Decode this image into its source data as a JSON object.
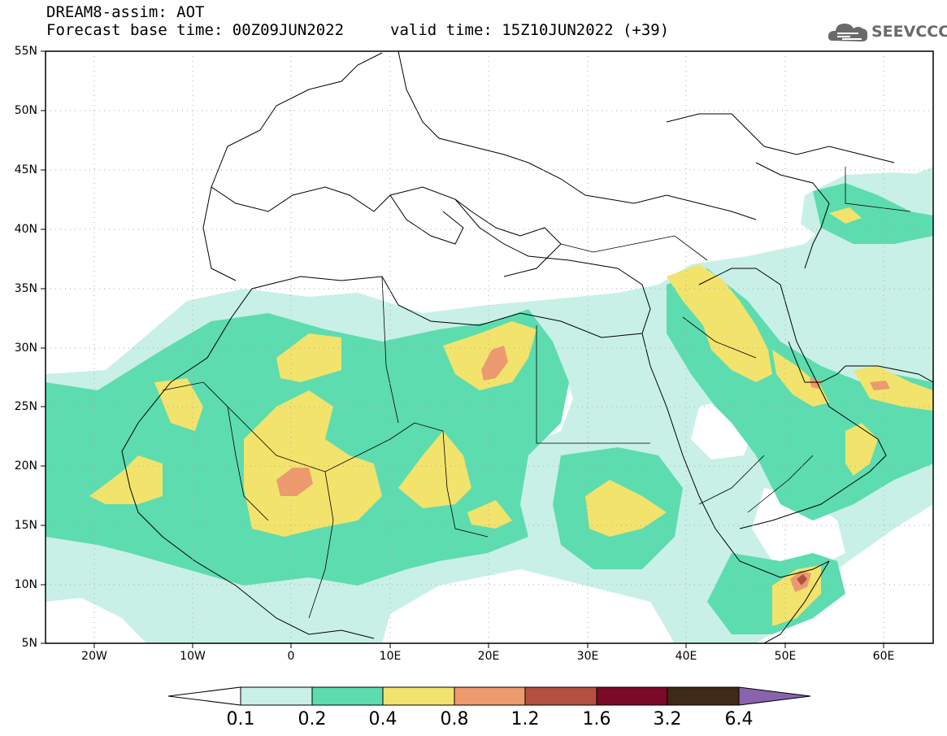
{
  "header": {
    "title": "DREAM8-assim: AOT",
    "base_time": "Forecast base time: 00Z09JUN2022",
    "valid_time": "valid time: 15Z10JUN2022 (+39)"
  },
  "logo": {
    "text": "SEEVCCC",
    "icon": "cloud-icon"
  },
  "map": {
    "lat_range": [
      5,
      55
    ],
    "lon_range": [
      -25,
      65
    ],
    "lat_labels": [
      "55N",
      "50N",
      "45N",
      "40N",
      "35N",
      "30N",
      "25N",
      "20N",
      "15N",
      "10N",
      "5N"
    ],
    "lon_labels": [
      "20W",
      "10W",
      "0",
      "10E",
      "20E",
      "30E",
      "40E",
      "50E",
      "60E"
    ],
    "grid": "dotted"
  },
  "legend": {
    "labels": [
      "0.1",
      "0.2",
      "0.4",
      "0.8",
      "1.2",
      "1.6",
      "3.2",
      "6.4"
    ],
    "colors": [
      "#ffffff",
      "#c8f0e6",
      "#5ddcaf",
      "#f2e36c",
      "#ec9a6e",
      "#b3503f",
      "#7a0a28",
      "#3e2a17",
      "#8a63ad"
    ]
  },
  "colors": {
    "v01": "#c8f0e6",
    "v02": "#5ddcaf",
    "v04": "#f2e36c",
    "v08": "#ec9a6e",
    "v12": "#b3503f"
  }
}
